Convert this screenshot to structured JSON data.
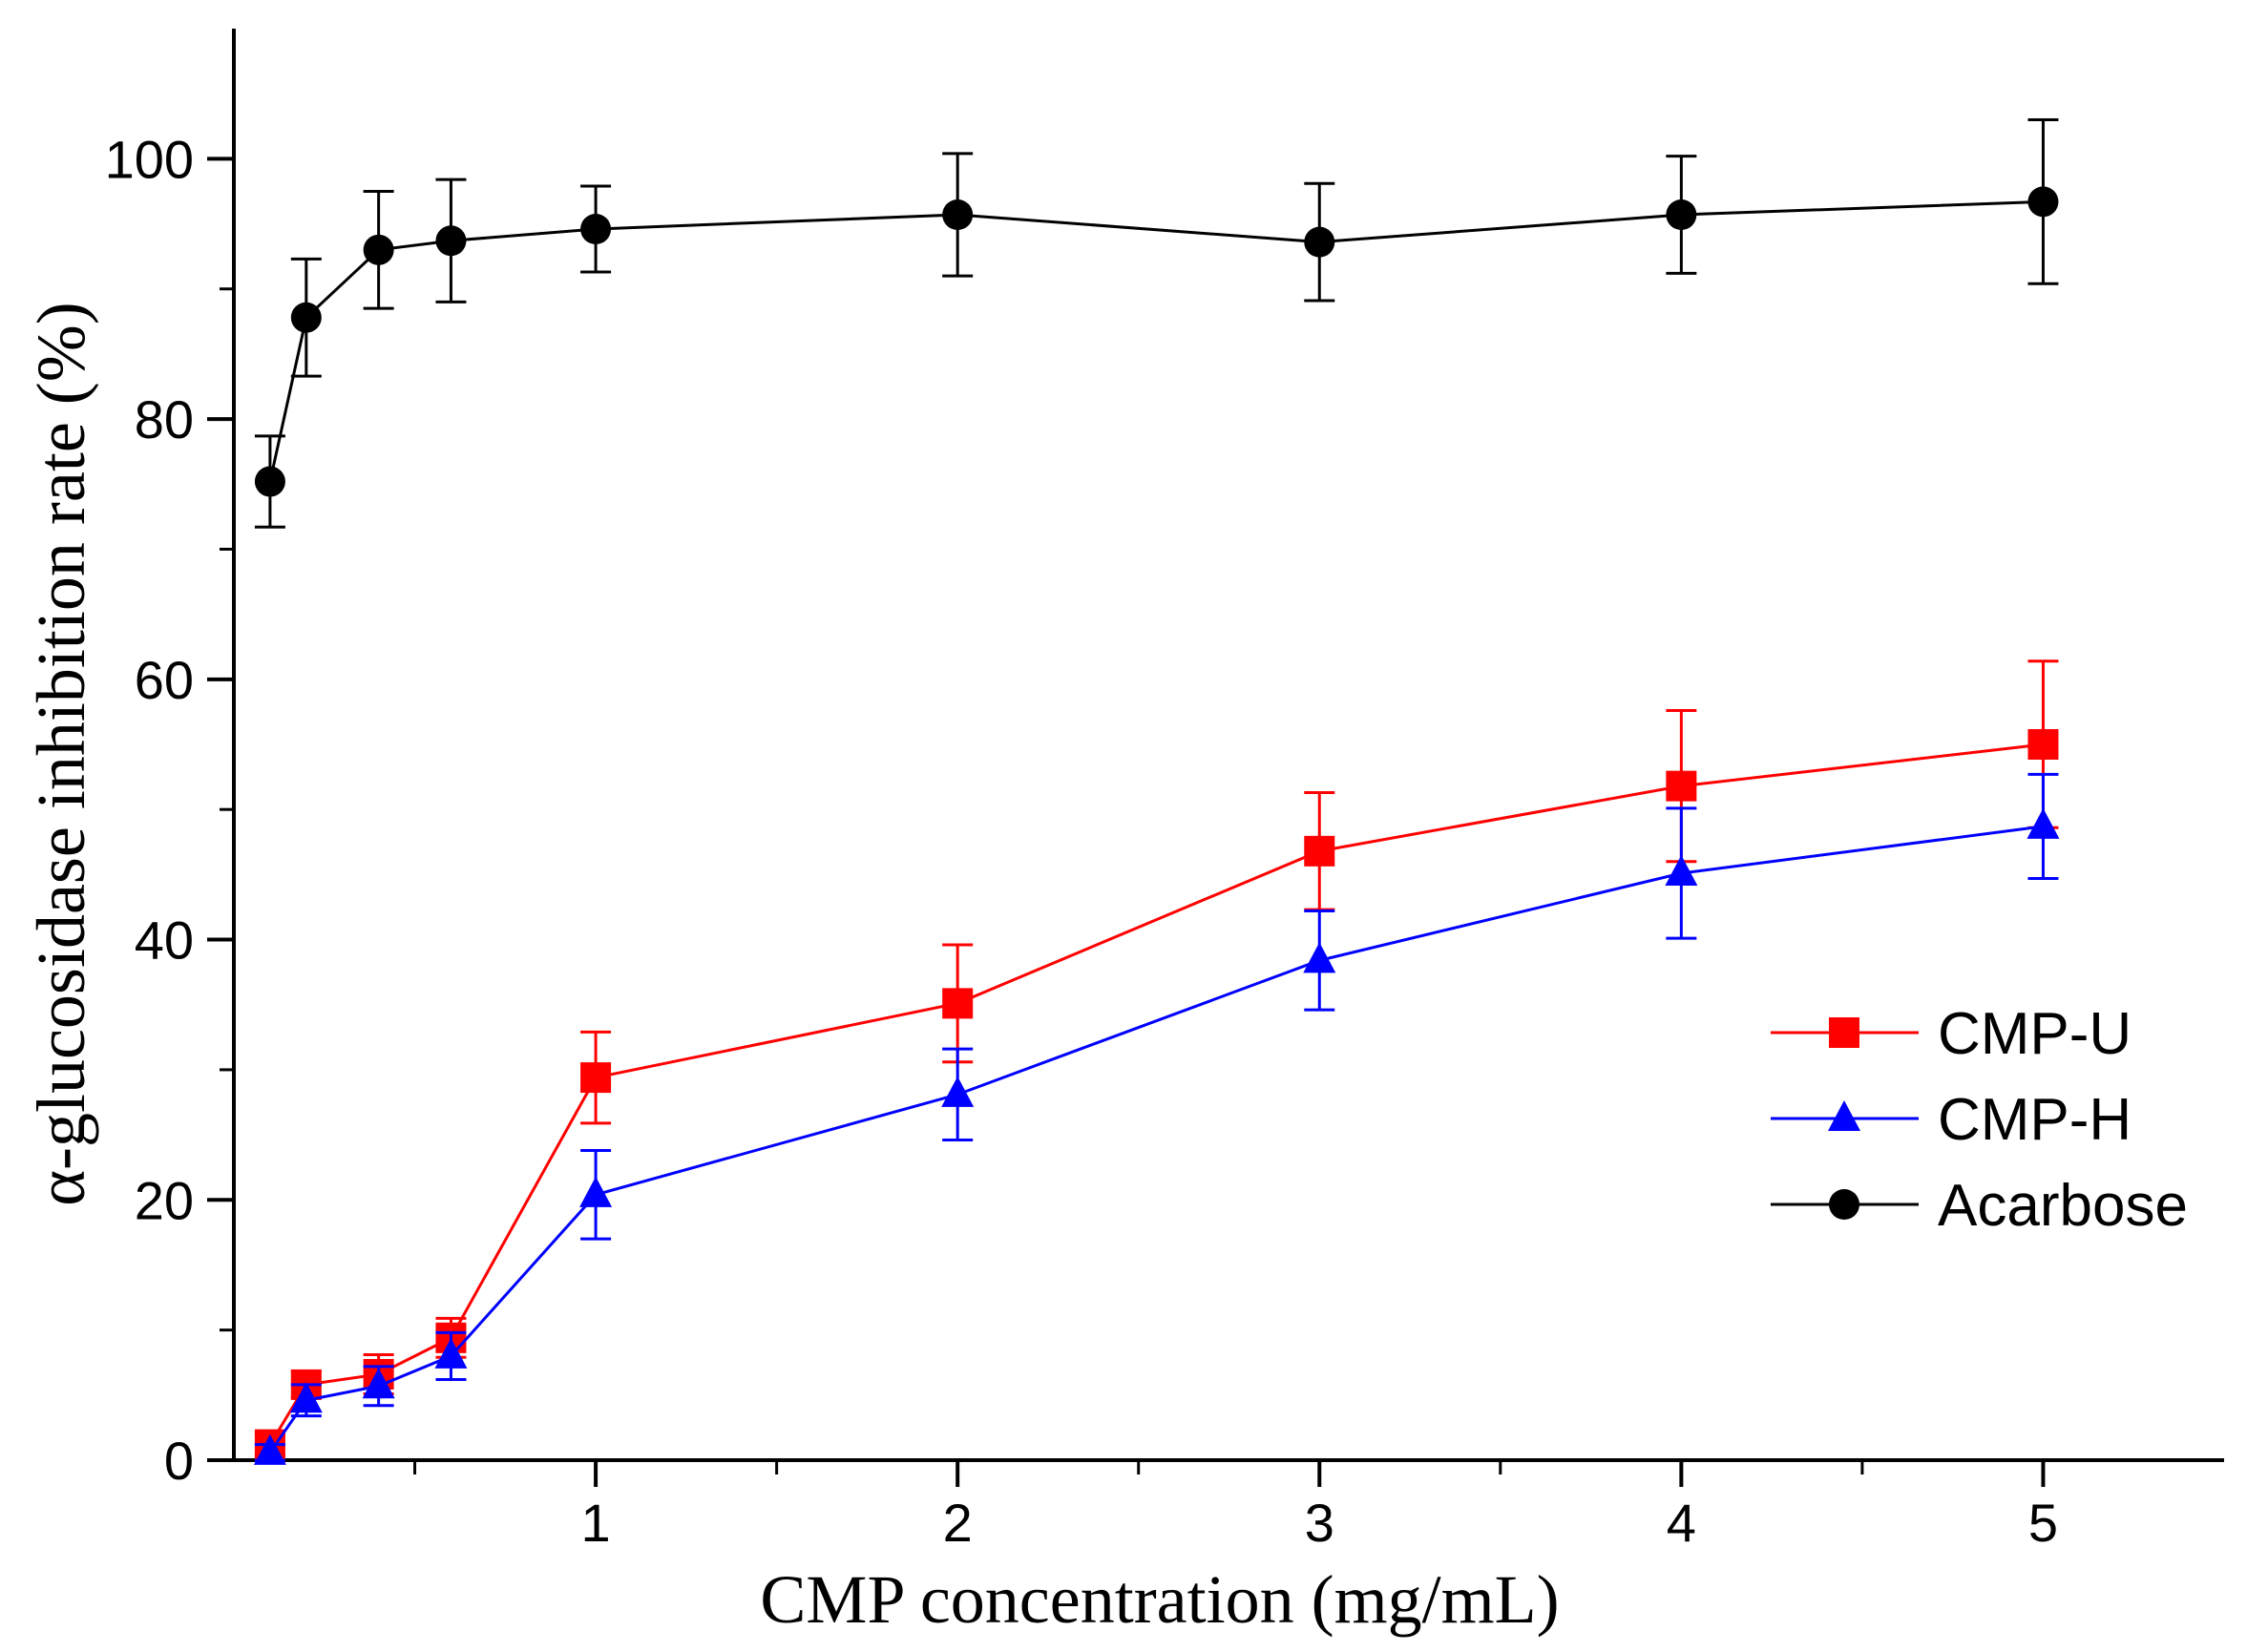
{
  "chart_data": {
    "type": "line",
    "xlabel": "CMP concentration (mg/mL)",
    "ylabel": "α-glucosidase inhibition rate (%)",
    "xlim": [
      0,
      5.5
    ],
    "ylim": [
      0,
      110
    ],
    "xticks": [
      1,
      2,
      3,
      4,
      5
    ],
    "xticks_minor": [
      0.5,
      1.5,
      2.5,
      3.5,
      4.5
    ],
    "yticks": [
      0,
      20,
      40,
      60,
      80,
      100
    ],
    "yticks_minor": [
      10,
      30,
      50,
      70,
      90
    ],
    "legend_position": "center-right",
    "grid": false,
    "x": [
      0.1,
      0.2,
      0.4,
      0.6,
      1,
      2,
      3,
      4,
      5
    ],
    "series": [
      {
        "name": "CMP-U",
        "color": "#ff0000",
        "marker": "square",
        "values": [
          1.2,
          5.8,
          6.6,
          9.4,
          29.4,
          35.1,
          46.8,
          51.8,
          55.0
        ],
        "errors": [
          0.8,
          1.0,
          1.5,
          1.5,
          3.5,
          4.5,
          4.5,
          5.8,
          6.4
        ]
      },
      {
        "name": "CMP-H",
        "color": "#0000ff",
        "marker": "triangle",
        "values": [
          0.6,
          4.6,
          5.7,
          8.0,
          20.4,
          28.1,
          38.4,
          45.1,
          48.7
        ],
        "errors": [
          0.6,
          1.2,
          1.5,
          1.8,
          3.4,
          3.5,
          3.8,
          5.0,
          4.0
        ]
      },
      {
        "name": "Acarbose",
        "color": "#000000",
        "marker": "circle",
        "values": [
          75.2,
          87.8,
          93.0,
          93.7,
          94.6,
          95.7,
          93.6,
          95.7,
          96.7
        ],
        "errors": [
          3.5,
          4.5,
          4.5,
          4.7,
          3.3,
          4.7,
          4.5,
          4.5,
          6.3
        ]
      }
    ]
  }
}
